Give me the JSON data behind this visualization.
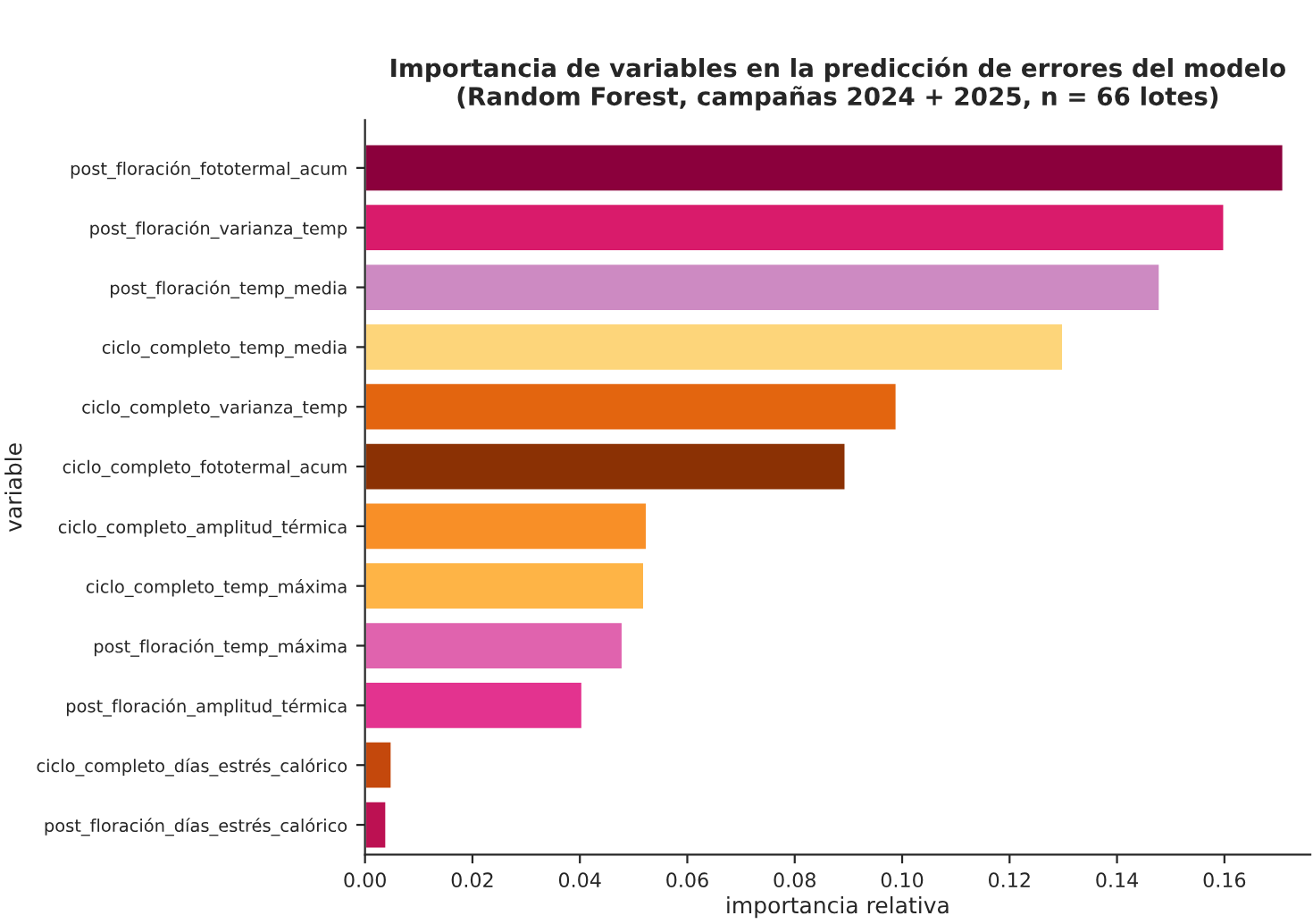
{
  "chart_data": {
    "type": "bar",
    "orientation": "horizontal",
    "title": "Importancia de variables en la predicción de errores del modelo\n(Random Forest, campañas 2024 + 2025, n = 66 lotes)",
    "xlabel": "importancia relativa",
    "ylabel": "variable",
    "categories": [
      "post_floración_fototermal_acum",
      "post_floración_varianza_temp",
      "post_floración_temp_media",
      "ciclo_completo_temp_media",
      "ciclo_completo_varianza_temp",
      "ciclo_completo_fototermal_acum",
      "ciclo_completo_amplitud_térmica",
      "ciclo_completo_temp_máxima",
      "post_floración_temp_máxima",
      "post_floración_amplitud_térmica",
      "ciclo_completo_días_estrés_calórico",
      "post_floración_días_estrés_calórico"
    ],
    "values": [
      0.171,
      0.16,
      0.148,
      0.13,
      0.099,
      0.0895,
      0.0525,
      0.052,
      0.048,
      0.0405,
      0.005,
      0.004
    ],
    "colors": [
      "#8b003c",
      "#d91b6b",
      "#cd8ac2",
      "#fdd57a",
      "#e3650f",
      "#8b3104",
      "#f88f27",
      "#feb446",
      "#e063ae",
      "#e3338f",
      "#c4480c",
      "#bc1152"
    ],
    "xlim": [
      0,
      0.176
    ],
    "xticks": [
      {
        "value": 0,
        "label": "0.00"
      },
      {
        "value": 0.02,
        "label": "0.02"
      },
      {
        "value": 0.04,
        "label": "0.04"
      },
      {
        "value": 0.06,
        "label": "0.06"
      },
      {
        "value": 0.08,
        "label": "0.08"
      },
      {
        "value": 0.1,
        "label": "0.10"
      },
      {
        "value": 0.12,
        "label": "0.12"
      },
      {
        "value": 0.14,
        "label": "0.14"
      },
      {
        "value": 0.16,
        "label": "0.16"
      }
    ],
    "grid": false,
    "legend": false
  }
}
